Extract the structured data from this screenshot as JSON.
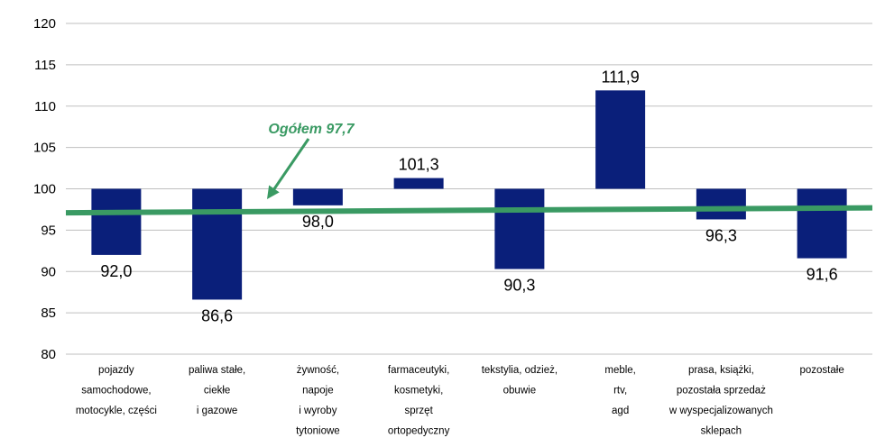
{
  "chart_data": {
    "type": "bar",
    "baseline": 100,
    "ylim": [
      80,
      120
    ],
    "yticks": [
      80,
      85,
      90,
      95,
      100,
      105,
      110,
      115,
      120
    ],
    "grid": true,
    "categories": [
      [
        "pojazdy",
        "samochodowe,",
        "motocykle, części"
      ],
      [
        "paliwa stałe,",
        "ciekłe",
        "i gazowe"
      ],
      [
        "żywność,",
        "napoje",
        "i wyroby",
        "tytoniowe"
      ],
      [
        "farmaceutyki,",
        "kosmetyki,",
        "sprzęt",
        "ortopedyczny"
      ],
      [
        "tekstylia, odzież,",
        "obuwie"
      ],
      [
        "meble,",
        "rtv,",
        "agd"
      ],
      [
        "prasa, książki,",
        "pozostała sprzedaż",
        "w wyspecjalizowanych",
        "sklepach"
      ],
      [
        "pozostałe"
      ]
    ],
    "values": [
      92.0,
      86.6,
      98.0,
      101.3,
      90.3,
      111.9,
      96.3,
      91.6
    ],
    "value_labels": [
      "92,0",
      "86,6",
      "98,0",
      "101,3",
      "90,3",
      "111,9",
      "96,3",
      "91,6"
    ],
    "total_line": {
      "start": 97.1,
      "end": 97.7,
      "label": "Ogółem 97,7"
    },
    "bar_color": "#0a1f7a",
    "line_color": "#3a9a63",
    "grid_color": "#bfbfbf"
  }
}
